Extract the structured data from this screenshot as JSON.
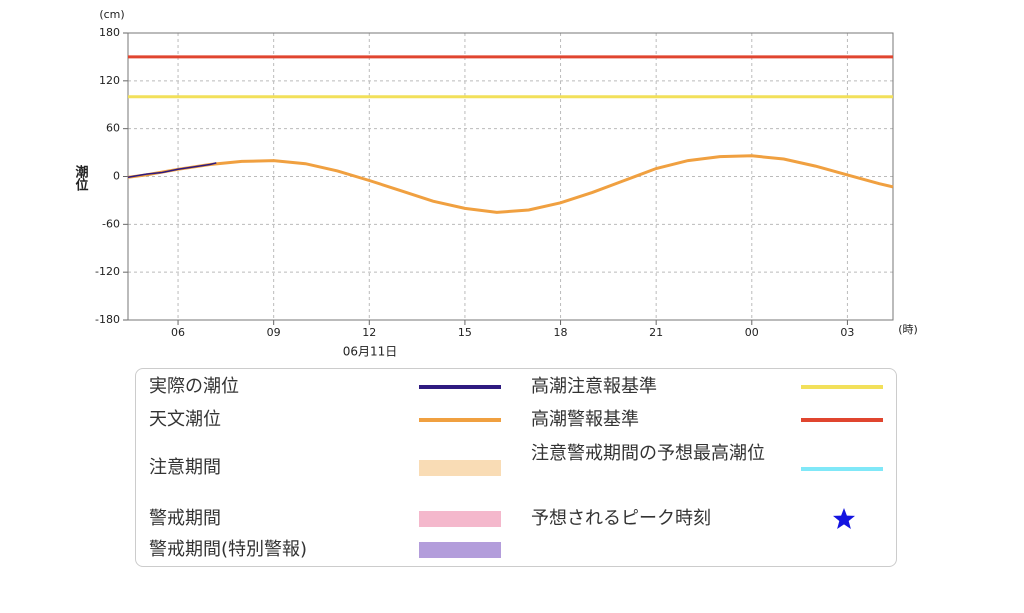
{
  "chart_data": {
    "type": "line",
    "y_label": "潮位",
    "y_unit": "(cm)",
    "x_unit": "(時)",
    "date_label": "06月11日",
    "xlim": [
      4.43,
      28.43
    ],
    "ylim": [
      -180,
      180
    ],
    "xticks": [
      {
        "value": 6,
        "label": "06"
      },
      {
        "value": 9,
        "label": "09"
      },
      12,
      15,
      18,
      21,
      {
        "value": 24,
        "label": "00"
      },
      {
        "value": 27,
        "label": "03"
      }
    ],
    "yticks": [
      -180,
      -120,
      -60,
      0,
      60,
      120,
      180
    ],
    "grid": true,
    "series": [
      {
        "name": "実際の潮位",
        "color": "#2e1a80",
        "x": [
          4.43,
          5,
          5.5,
          6,
          6.5,
          7,
          7.2
        ],
        "values": [
          -1,
          3,
          5,
          9,
          12,
          15,
          17
        ]
      },
      {
        "name": "天文潮位",
        "color": "#f0a040",
        "x": [
          4.43,
          5,
          6,
          7,
          8,
          9,
          10,
          11,
          12,
          13,
          14,
          15,
          16,
          17,
          18,
          19,
          20,
          21,
          22,
          23,
          24,
          25,
          26,
          27,
          28,
          28.43
        ],
        "values": [
          -1,
          2,
          9,
          15,
          19,
          20,
          16,
          7,
          -5,
          -18,
          -31,
          -40,
          -45,
          -42,
          -33,
          -20,
          -5,
          10,
          20,
          25,
          26,
          22,
          13,
          2,
          -9,
          -13
        ]
      }
    ],
    "thresholds": [
      {
        "name": "高潮注意報基準",
        "color": "#f2e05a",
        "value": 100
      },
      {
        "name": "高潮警報基準",
        "color": "#e0452f",
        "value": 150
      }
    ],
    "legend_extra": [
      {
        "name": "注意期間",
        "color": "#f9dcb5",
        "kind": "band"
      },
      {
        "name": "警戒期間",
        "color": "#f4b8cc",
        "kind": "band"
      },
      {
        "name": "警戒期間(特別警報)",
        "color": "#b39ddb",
        "kind": "band"
      },
      {
        "name": "注意警戒期間の予想最高潮位",
        "color": "#80e8f8",
        "kind": "line"
      },
      {
        "name": "予想されるピーク時刻",
        "color": "#1414e0",
        "kind": "star"
      }
    ]
  }
}
